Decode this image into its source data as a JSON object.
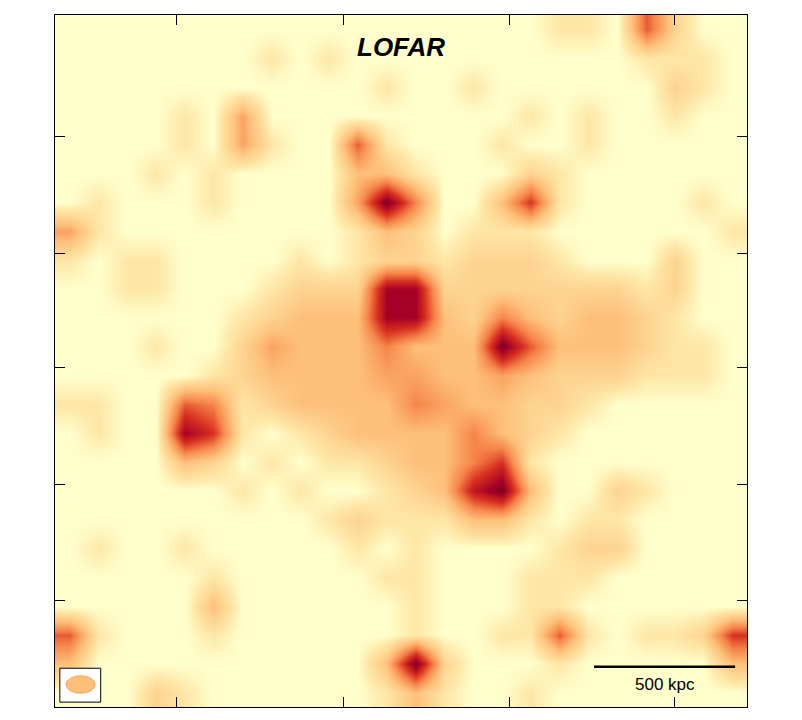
{
  "chart_data": {
    "type": "heatmap",
    "title": "LOFAR",
    "z": [
      [
        0,
        0,
        0,
        0,
        0,
        0,
        0,
        0,
        0,
        0,
        0,
        0,
        0,
        0,
        0,
        0,
        0,
        1,
        1,
        0,
        6,
        2,
        0,
        0
      ],
      [
        0,
        0,
        0,
        0,
        0,
        0,
        0,
        1,
        0,
        1,
        0,
        0,
        0,
        0,
        0,
        0,
        0,
        0,
        0,
        0,
        1,
        1,
        1,
        0
      ],
      [
        0,
        0,
        0,
        0,
        0,
        0,
        0,
        0,
        0,
        0,
        0,
        1,
        0,
        0,
        1,
        0,
        0,
        0,
        0,
        0,
        0,
        2,
        1,
        0
      ],
      [
        0,
        0,
        0,
        0,
        1,
        0,
        4,
        0,
        0,
        0,
        0,
        0,
        0,
        0,
        0,
        0,
        1,
        0,
        1,
        0,
        0,
        1,
        0,
        0
      ],
      [
        0,
        0,
        0,
        0,
        1,
        0,
        4,
        1,
        0,
        0,
        6,
        1,
        0,
        0,
        0,
        1,
        0,
        0,
        1,
        0,
        0,
        0,
        0,
        0
      ],
      [
        0,
        0,
        0,
        1,
        0,
        1,
        0,
        0,
        0,
        0,
        3,
        3,
        1,
        0,
        0,
        0,
        2,
        1,
        0,
        0,
        0,
        0,
        0,
        0
      ],
      [
        0,
        1,
        0,
        0,
        0,
        1,
        0,
        0,
        0,
        0,
        4,
        10,
        5,
        0,
        0,
        3,
        7,
        1,
        0,
        0,
        0,
        0,
        1,
        0
      ],
      [
        4,
        1,
        0,
        0,
        0,
        0,
        0,
        0,
        0,
        0,
        1,
        3,
        2,
        0,
        1,
        1,
        1,
        0,
        0,
        0,
        0,
        0,
        0,
        1
      ],
      [
        1,
        0,
        1,
        1,
        0,
        0,
        0,
        0,
        1,
        0,
        1,
        2,
        2,
        1,
        2,
        2,
        2,
        1,
        0,
        0,
        0,
        2,
        0,
        0
      ],
      [
        0,
        0,
        1,
        1,
        0,
        0,
        0,
        1,
        2,
        2,
        2,
        9,
        9,
        2,
        2,
        2,
        2,
        2,
        2,
        2,
        1,
        2,
        0,
        0
      ],
      [
        0,
        0,
        0,
        0,
        0,
        0,
        1,
        2,
        3,
        3,
        3,
        9,
        9,
        3,
        2,
        5,
        3,
        2,
        3,
        3,
        2,
        1,
        0,
        0
      ],
      [
        0,
        0,
        0,
        1,
        0,
        0,
        2,
        4,
        3,
        3,
        3,
        5,
        3,
        3,
        3,
        10,
        6,
        3,
        3,
        3,
        2,
        1,
        1,
        0
      ],
      [
        0,
        0,
        0,
        0,
        0,
        1,
        2,
        3,
        3,
        3,
        3,
        4,
        4,
        3,
        3,
        4,
        3,
        2,
        2,
        2,
        1,
        1,
        1,
        0
      ],
      [
        1,
        1,
        0,
        0,
        6,
        5,
        1,
        2,
        3,
        3,
        3,
        3,
        5,
        4,
        3,
        3,
        2,
        2,
        1,
        0,
        0,
        0,
        0,
        0
      ],
      [
        0,
        1,
        0,
        0,
        9,
        7,
        1,
        0,
        1,
        2,
        3,
        3,
        3,
        3,
        5,
        3,
        2,
        1,
        0,
        0,
        0,
        0,
        0,
        0
      ],
      [
        0,
        0,
        0,
        0,
        3,
        2,
        0,
        1,
        0,
        1,
        1,
        2,
        3,
        3,
        5,
        7,
        1,
        0,
        0,
        0,
        0,
        0,
        0,
        0
      ],
      [
        0,
        0,
        0,
        0,
        0,
        0,
        1,
        0,
        1,
        0,
        0,
        1,
        2,
        3,
        8,
        10,
        3,
        0,
        0,
        2,
        1,
        0,
        0,
        0
      ],
      [
        0,
        0,
        0,
        0,
        0,
        0,
        0,
        0,
        0,
        1,
        2,
        1,
        1,
        1,
        3,
        3,
        1,
        0,
        1,
        1,
        0,
        0,
        0,
        0
      ],
      [
        0,
        1,
        0,
        0,
        1,
        0,
        0,
        0,
        0,
        0,
        1,
        0,
        1,
        0,
        0,
        0,
        0,
        1,
        2,
        2,
        0,
        0,
        0,
        0
      ],
      [
        0,
        0,
        0,
        0,
        0,
        1,
        0,
        0,
        0,
        0,
        0,
        1,
        1,
        0,
        0,
        0,
        1,
        1,
        1,
        0,
        0,
        0,
        0,
        0
      ],
      [
        0,
        0,
        0,
        0,
        0,
        3,
        0,
        0,
        0,
        0,
        0,
        0,
        1,
        0,
        0,
        0,
        1,
        1,
        0,
        0,
        0,
        0,
        0,
        0
      ],
      [
        6,
        1,
        0,
        0,
        0,
        1,
        0,
        0,
        0,
        0,
        0,
        0,
        1,
        0,
        0,
        1,
        1,
        6,
        1,
        0,
        1,
        1,
        2,
        7
      ],
      [
        3,
        0,
        0,
        0,
        0,
        0,
        0,
        0,
        0,
        0,
        0,
        3,
        10,
        2,
        0,
        0,
        0,
        1,
        0,
        0,
        0,
        0,
        0,
        3
      ],
      [
        0,
        0,
        0,
        2,
        1,
        0,
        0,
        0,
        0,
        0,
        0,
        1,
        3,
        1,
        0,
        0,
        1,
        0,
        0,
        0,
        0,
        0,
        0,
        0
      ]
    ],
    "zlim": [
      0,
      10
    ],
    "xlim": [
      -0.5,
      23.5
    ],
    "ylim": [
      23.5,
      -0.5
    ],
    "xticks": [
      3.7,
      9.49,
      15.25,
      21.0
    ],
    "yticks": [
      3.73,
      7.76,
      11.74,
      15.77,
      19.79
    ],
    "tick_labels": false,
    "annotations": [
      {
        "text": "500 kpc"
      }
    ],
    "scale_bar_length": 4.89
  }
}
